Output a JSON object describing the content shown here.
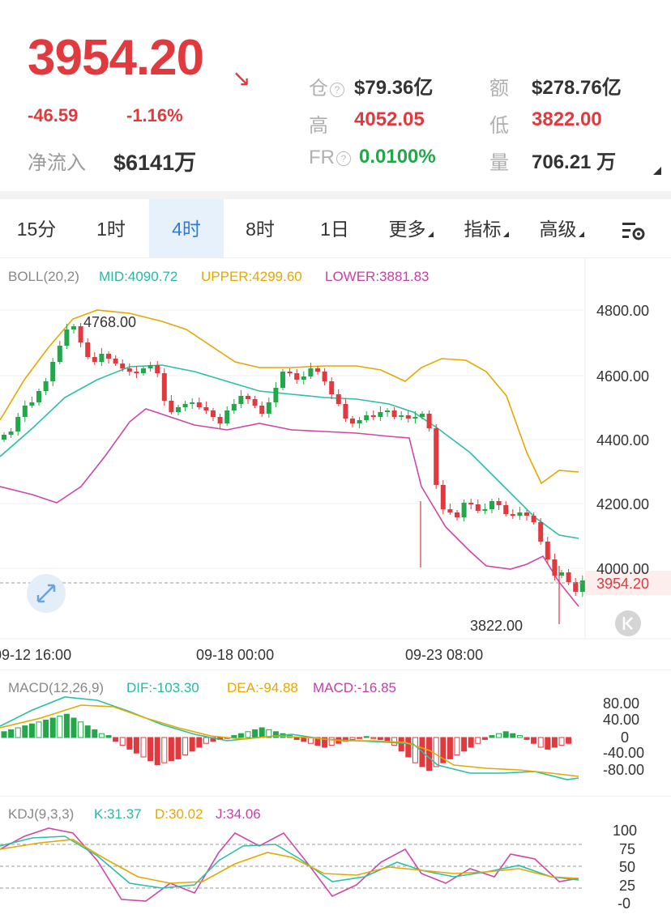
{
  "header": {
    "price": "3954.20",
    "change": "-46.59",
    "change_pct": "-1.16%",
    "net_inflow_label": "净流入",
    "net_inflow_value": "$6141万",
    "stats": {
      "oi_label": "仓",
      "oi_value": "$79.36亿",
      "amount_label": "额",
      "amount_value": "$278.76亿",
      "high_label": "高",
      "high_value": "4052.05",
      "low_label": "低",
      "low_value": "3822.00",
      "fr_label": "FR",
      "fr_value": "0.0100%",
      "volume_label": "量",
      "volume_value": "706.21 万"
    },
    "colors": {
      "up": "#22a84a",
      "down": "#e0393e",
      "accent": "#2f7bd6"
    }
  },
  "tabs": {
    "items": [
      "15分",
      "1时",
      "4时",
      "8时",
      "1日",
      "更多",
      "指标",
      "高级"
    ],
    "active": "4时",
    "settings_icon": "chart-settings-icon"
  },
  "main_chart": {
    "indicator": "BOLL(20,2)",
    "mid": "MID:4090.72",
    "upper": "UPPER:4299.60",
    "lower": "LOWER:3881.83",
    "y_labels": [
      "4800.00",
      "4600.00",
      "4400.00",
      "4200.00",
      "4000.00"
    ],
    "current_price_label": "3954.20",
    "high_marker": "4768.00",
    "low_marker": "3822.00",
    "x_labels": [
      "09-12 16:00",
      "09-18 00:00",
      "09-23 08:00"
    ],
    "expand_icon": "expand-icon",
    "back_icon": "back-to-latest-icon"
  },
  "macd": {
    "indicator": "MACD(12,26,9)",
    "dif": "DIF:-103.30",
    "dea": "DEA:-94.88",
    "macd": "MACD:-16.85",
    "y_labels": [
      "80.00",
      "40.00",
      "0",
      "-40.00",
      "-80.00"
    ]
  },
  "kdj": {
    "indicator": "KDJ(9,3,3)",
    "k": "K:31.37",
    "d": "D:30.02",
    "j": "J:34.06",
    "y_labels": [
      "100",
      "75",
      "50",
      "25",
      "-0"
    ]
  }
}
